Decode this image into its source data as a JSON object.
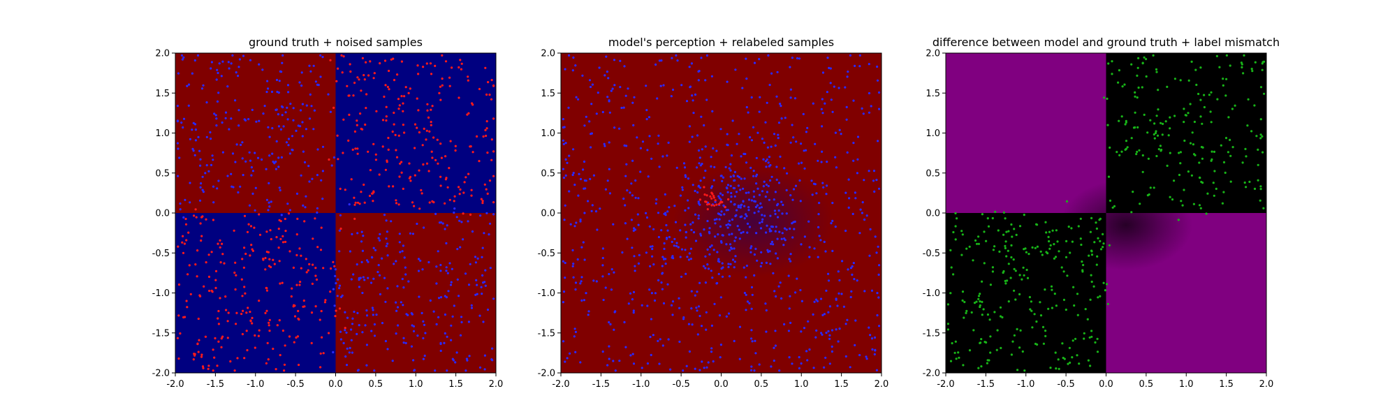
{
  "colors": {
    "dark_red": "#800000",
    "navy": "#000080",
    "red_point": "#ff1a1a",
    "blue_point": "#2a2aff",
    "purple": "#800080",
    "black": "#000000",
    "green_point": "#18b418",
    "axis": "#000000"
  },
  "chart_data": [
    {
      "type": "scatter",
      "title": "ground truth + noised samples",
      "xlim": [
        -2.0,
        2.0
      ],
      "ylim": [
        -2.0,
        2.0
      ],
      "xticks": [
        "-2.0",
        "-1.5",
        "-1.0",
        "-0.5",
        "0.0",
        "0.5",
        "1.0",
        "1.5",
        "2.0"
      ],
      "yticks": [
        "-2.0",
        "-1.5",
        "-1.0",
        "-0.5",
        "0.0",
        "0.5",
        "1.0",
        "1.5",
        "2.0"
      ],
      "background": "XOR quadrants: dark red where x*y<0, navy where x*y>0",
      "series": [
        {
          "label": "red samples",
          "color": "red_point",
          "region": "quadrants I and III (x*y>0)",
          "count": 500
        },
        {
          "label": "blue samples",
          "color": "blue_point",
          "region": "quadrants II and IV (x*y<0)",
          "count": 500
        }
      ],
      "grid": false
    },
    {
      "type": "scatter",
      "title": "model's perception + relabeled samples",
      "xlim": [
        -2.0,
        2.0
      ],
      "ylim": [
        -2.0,
        2.0
      ],
      "xticks": [
        "-2.0",
        "-1.5",
        "-1.0",
        "-0.5",
        "0.0",
        "0.5",
        "1.0",
        "1.5",
        "2.0"
      ],
      "yticks": [
        "-2.0",
        "-1.5",
        "-1.0",
        "-0.5",
        "0.0",
        "0.5",
        "1.0",
        "1.5",
        "2.0"
      ],
      "background": "dark red everywhere, faint navy blob centered near (0.4, -0.1)",
      "series": [
        {
          "label": "blue samples",
          "color": "blue_point",
          "region": "everywhere, dense near center",
          "count": 1000
        },
        {
          "label": "red samples",
          "color": "red_point",
          "region": "small cluster near (-0.1, 0.2)",
          "count": 25
        }
      ],
      "grid": false
    },
    {
      "type": "scatter",
      "title": "difference between model and ground truth + label mismatch",
      "xlim": [
        -2.0,
        2.0
      ],
      "ylim": [
        -2.0,
        2.0
      ],
      "xticks": [
        "-2.0",
        "-1.5",
        "-1.0",
        "-0.5",
        "0.0",
        "0.5",
        "1.0",
        "1.5",
        "2.0"
      ],
      "yticks": [
        "-2.0",
        "-1.5",
        "-1.0",
        "-0.5",
        "0.0",
        "0.5",
        "1.0",
        "1.5",
        "2.0"
      ],
      "background": "purple where x*y<0, black where x*y>0, dark blob near center",
      "series": [
        {
          "label": "mismatched samples",
          "color": "green_point",
          "region": "quadrants I and III (x*y>0)",
          "count": 480
        }
      ],
      "grid": false
    }
  ]
}
